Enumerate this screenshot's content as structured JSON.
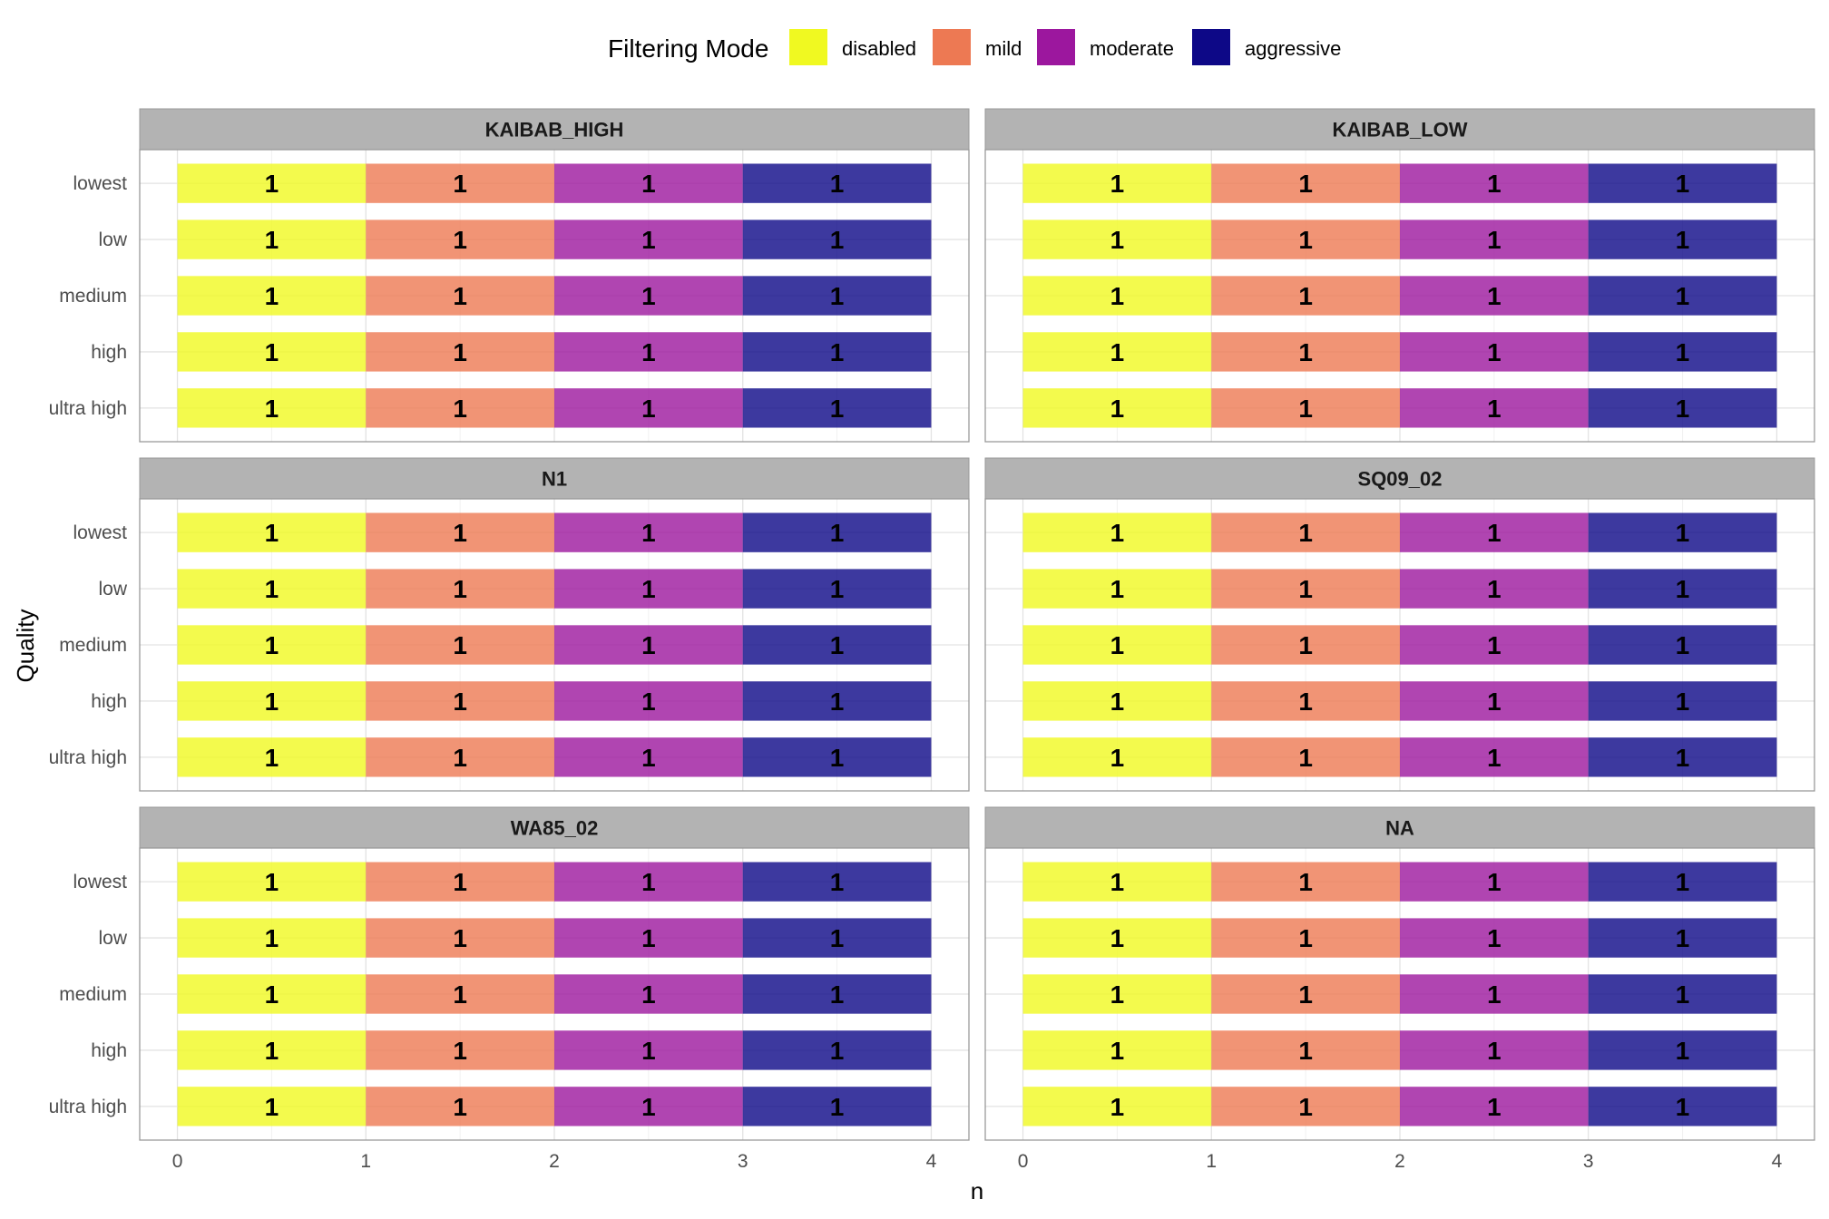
{
  "chart_data": {
    "type": "bar",
    "orientation": "horizontal",
    "stacked": true,
    "xlabel": "n",
    "ylabel": "Quality",
    "xlim": [
      0,
      4
    ],
    "xticks": [
      "0",
      "1",
      "2",
      "3",
      "4"
    ],
    "grid": true,
    "legend": {
      "title": "Filtering Mode",
      "position": "top",
      "entries": [
        {
          "name": "disabled",
          "color": "#F0F921"
        },
        {
          "name": "mild",
          "color": "#ED7953"
        },
        {
          "name": "moderate",
          "color": "#9C179E"
        },
        {
          "name": "aggressive",
          "color": "#0D0887"
        }
      ]
    },
    "categories": [
      "lowest",
      "low",
      "medium",
      "high",
      "ultra high"
    ],
    "series": [
      {
        "name": "disabled",
        "color": "#F0F921",
        "values": [
          1,
          1,
          1,
          1,
          1
        ]
      },
      {
        "name": "mild",
        "color": "#ED7953",
        "values": [
          1,
          1,
          1,
          1,
          1
        ]
      },
      {
        "name": "moderate",
        "color": "#9C179E",
        "values": [
          1,
          1,
          1,
          1,
          1
        ]
      },
      {
        "name": "aggressive",
        "color": "#0D0887",
        "values": [
          1,
          1,
          1,
          1,
          1
        ]
      }
    ],
    "facets": [
      {
        "title": "KAIBAB_HIGH"
      },
      {
        "title": "KAIBAB_LOW"
      },
      {
        "title": "N1"
      },
      {
        "title": "SQ09_02"
      },
      {
        "title": "WA85_02"
      },
      {
        "title": "NA"
      }
    ],
    "data_labels": "1"
  }
}
